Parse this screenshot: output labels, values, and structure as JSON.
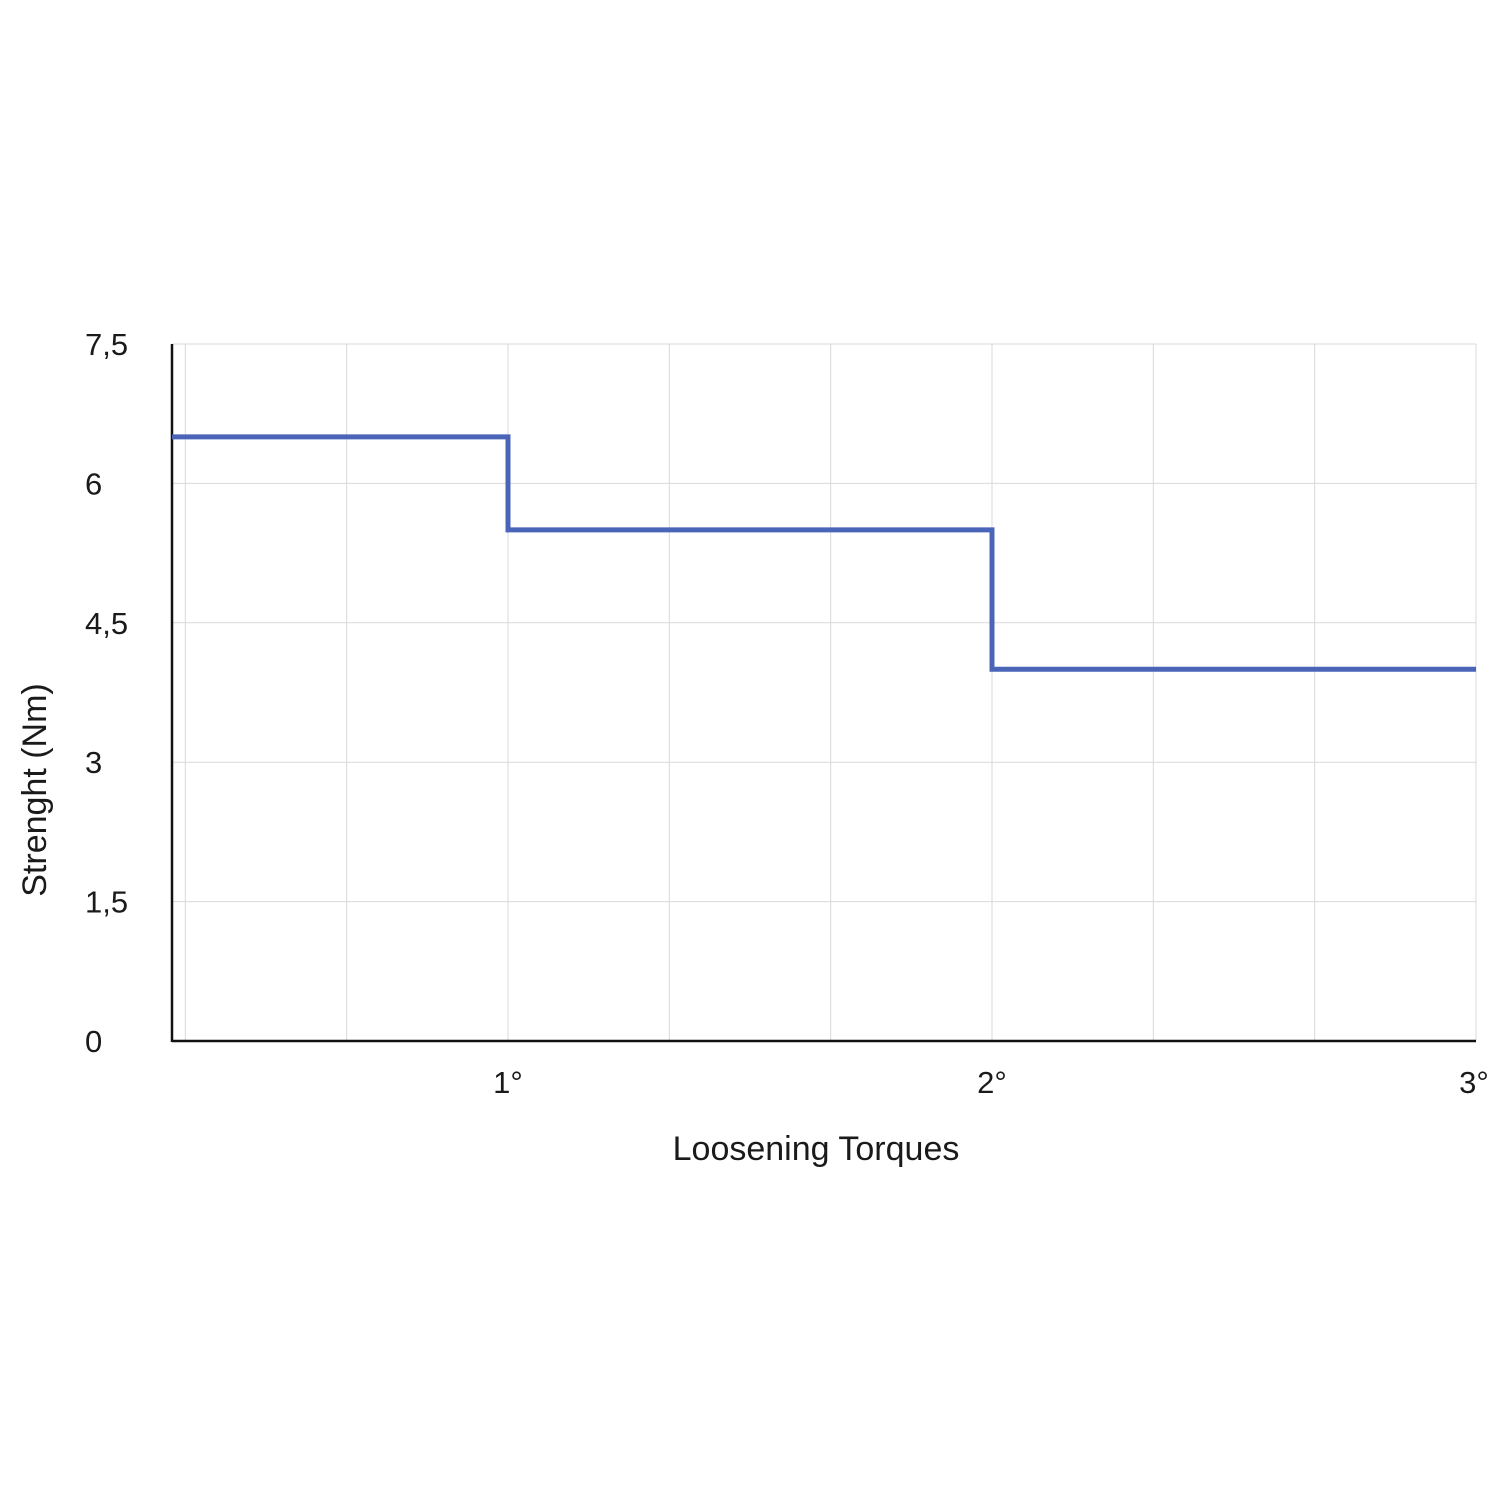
{
  "chart_data": {
    "type": "line",
    "step": true,
    "title": "",
    "xlabel": "Loosening Torques",
    "ylabel": "Strenght (Nm)",
    "x_ticks": [
      {
        "value": 1,
        "label": "1°"
      },
      {
        "value": 2,
        "label": "2°"
      },
      {
        "value": 3,
        "label": "3°"
      }
    ],
    "y_ticks": [
      {
        "value": 0,
        "label": "0"
      },
      {
        "value": 1.5,
        "label": "1,5"
      },
      {
        "value": 3,
        "label": "3"
      },
      {
        "value": 4.5,
        "label": "4,5"
      },
      {
        "value": 6,
        "label": "6"
      },
      {
        "value": 7.5,
        "label": "7,5"
      }
    ],
    "xlim": [
      0.3,
      3.0
    ],
    "ylim": [
      0,
      7.5
    ],
    "grid": true,
    "series": [
      {
        "color": "#4a64b8",
        "points": [
          {
            "x": 0.3,
            "y": 6.5
          },
          {
            "x": 1.0,
            "y": 6.5
          },
          {
            "x": 1.0,
            "y": 5.5
          },
          {
            "x": 2.0,
            "y": 5.5
          },
          {
            "x": 2.0,
            "y": 4.0
          },
          {
            "x": 3.0,
            "y": 4.0
          }
        ]
      }
    ]
  }
}
